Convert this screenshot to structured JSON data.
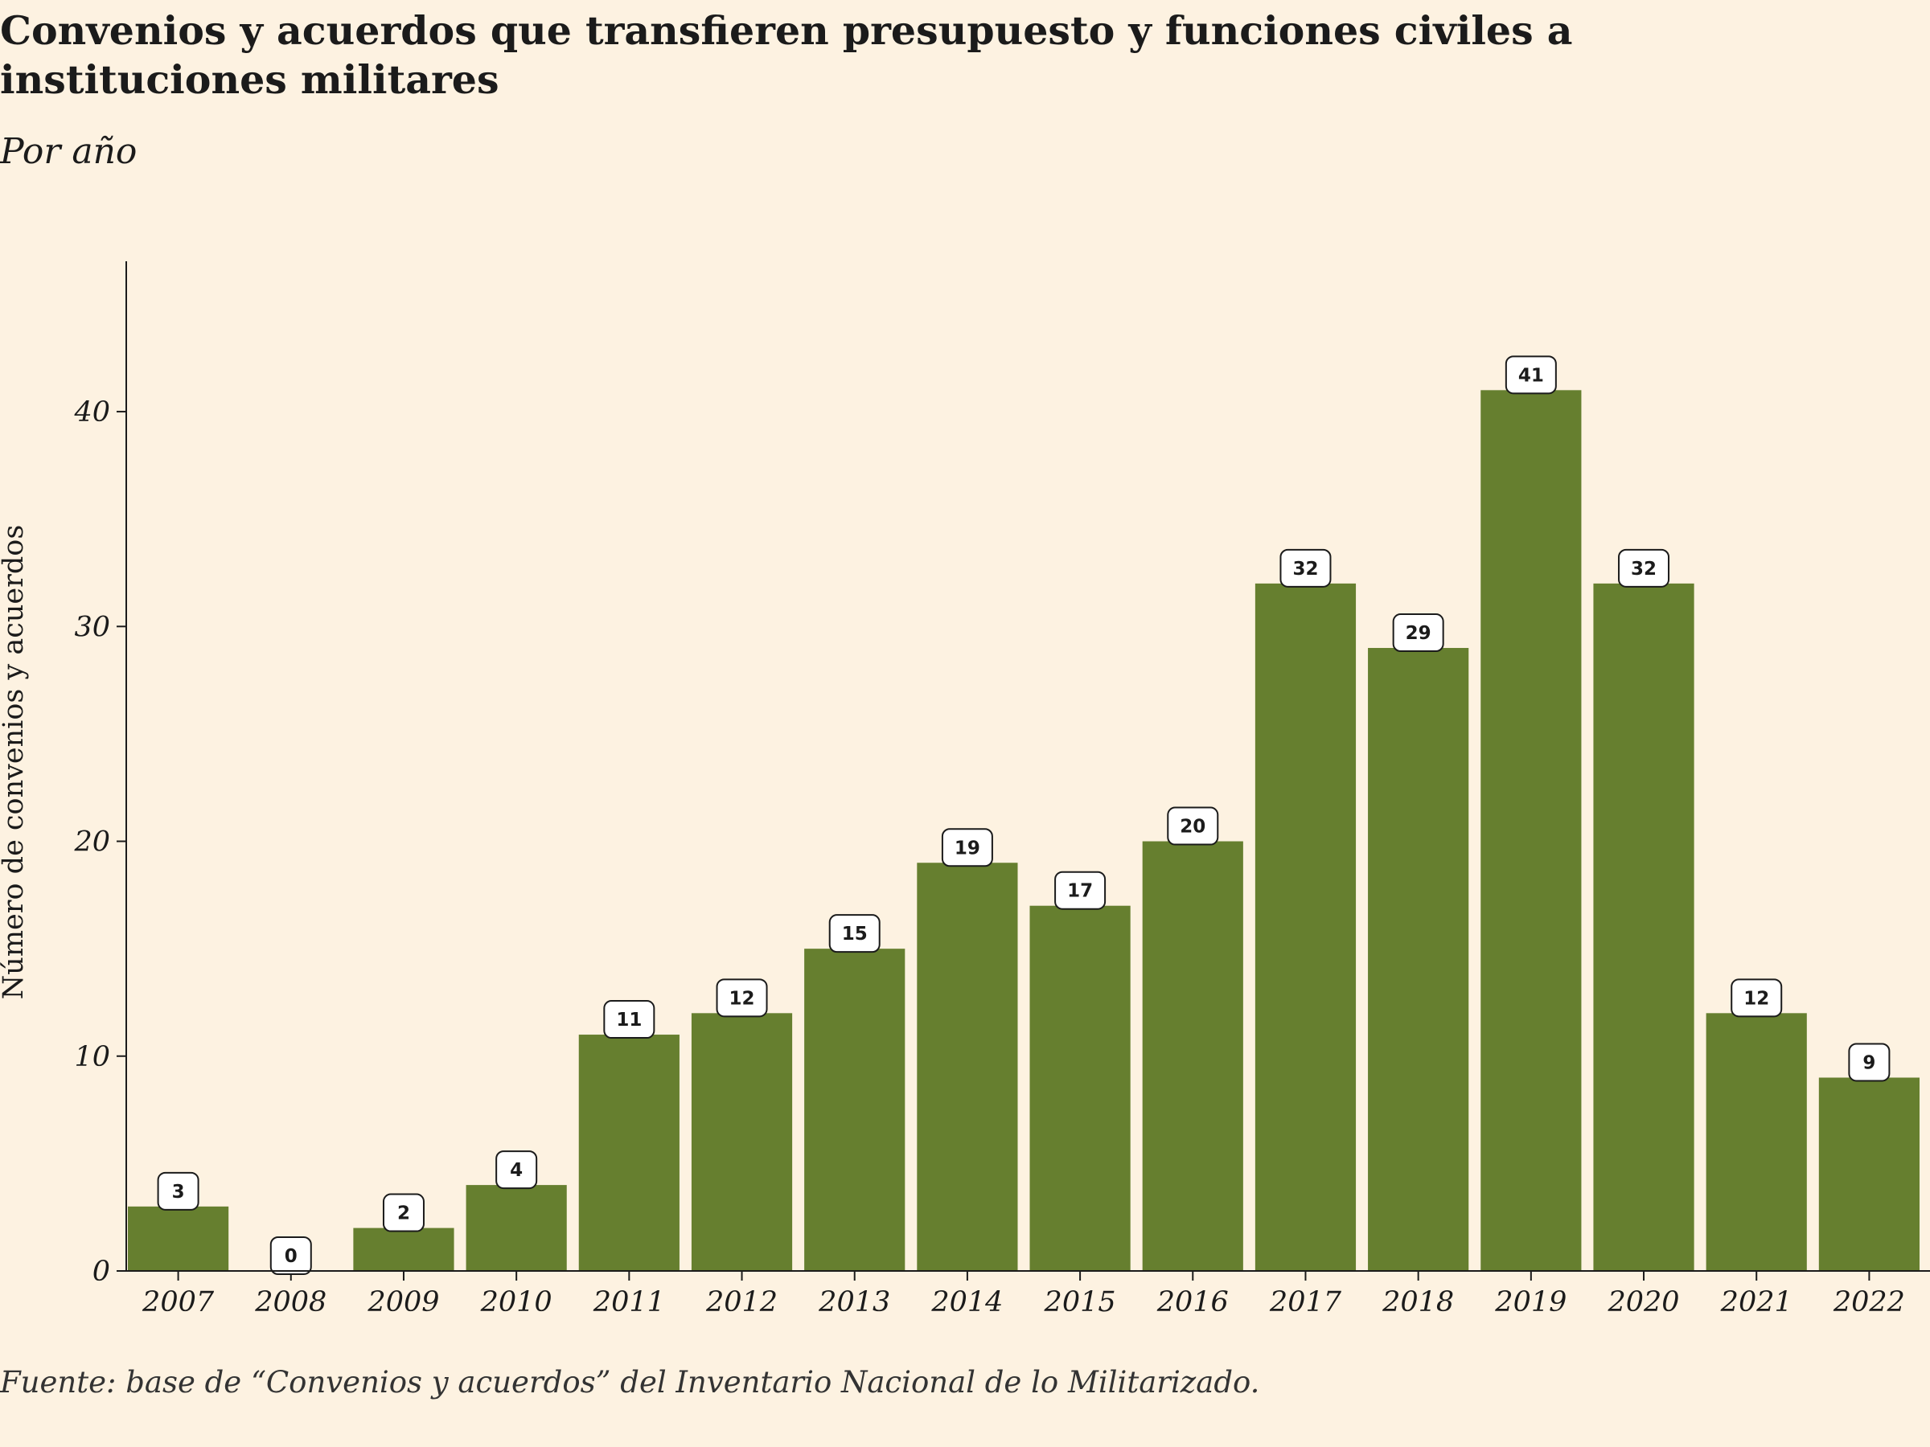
{
  "title": "Convenios y acuerdos que transfieren presupuesto y funciones civiles a instituciones militares",
  "subtitle": "Por año",
  "source": "Fuente: base de “Convenios y acuerdos” del Inventario Nacional de lo Militarizado.",
  "colors": {
    "background": "#fdf2e1",
    "bar": "#667f2f",
    "axis": "#1b1b1b",
    "label_box": "#ffffff"
  },
  "chart_data": {
    "type": "bar",
    "title": "Convenios y acuerdos que transfieren presupuesto y funciones civiles a instituciones militares",
    "subtitle": "Por año",
    "xlabel": "",
    "ylabel": "Número de convenios y acuerdos",
    "categories": [
      "2007",
      "2008",
      "2009",
      "2010",
      "2011",
      "2012",
      "2013",
      "2014",
      "2015",
      "2016",
      "2017",
      "2018",
      "2019",
      "2020",
      "2021",
      "2022"
    ],
    "values": [
      3,
      0,
      2,
      4,
      11,
      12,
      15,
      19,
      17,
      20,
      32,
      29,
      41,
      32,
      12,
      9
    ],
    "yticks": [
      0,
      10,
      20,
      30,
      40
    ],
    "ylim": [
      0,
      47
    ],
    "grid": false,
    "data_labels": true
  }
}
